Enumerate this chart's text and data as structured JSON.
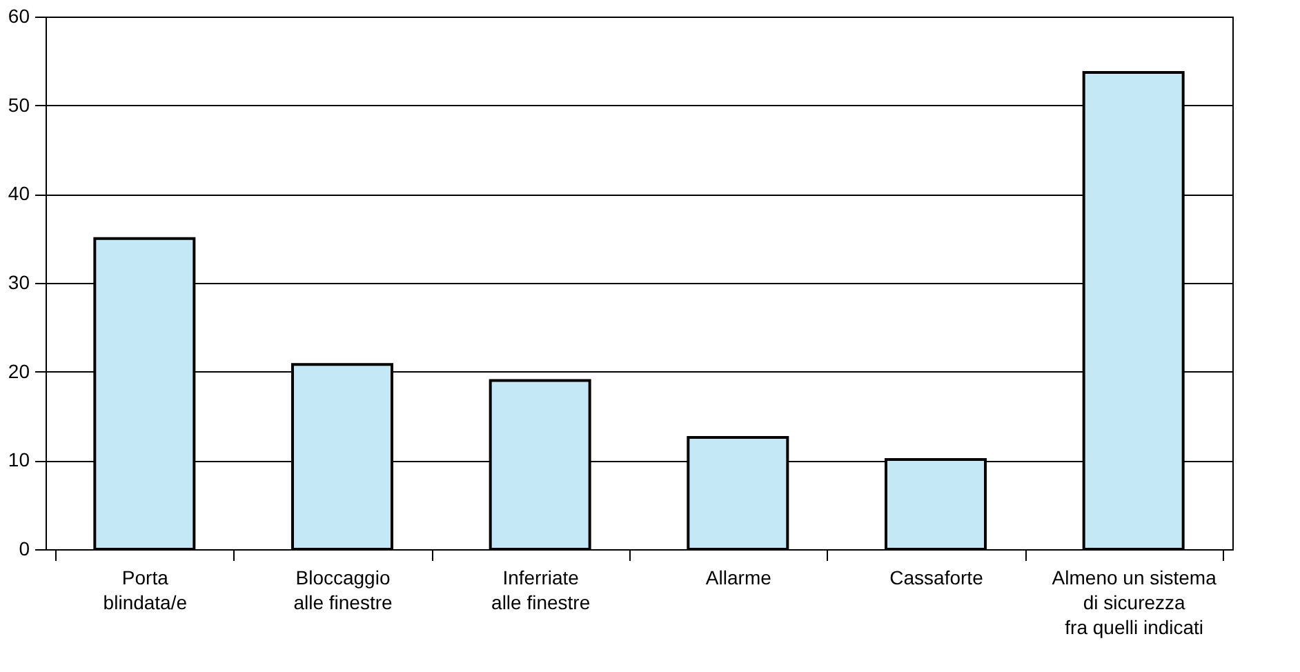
{
  "chart_data": {
    "type": "bar",
    "categories": [
      "Porta\nblindata/e",
      "Bloccaggio\nalle finestre",
      "Inferriate\nalle finestre",
      "Allarme",
      "Cassaforte",
      "Almeno un sistema\ndi sicurezza\nfra quelli indicati"
    ],
    "values": [
      35.0,
      20.8,
      19.0,
      12.6,
      10.1,
      53.7
    ],
    "color": "#c5e8f7",
    "ylim": [
      0,
      60
    ],
    "yticks": [
      0,
      10,
      20,
      30,
      40,
      50,
      60
    ],
    "grid": "y"
  }
}
